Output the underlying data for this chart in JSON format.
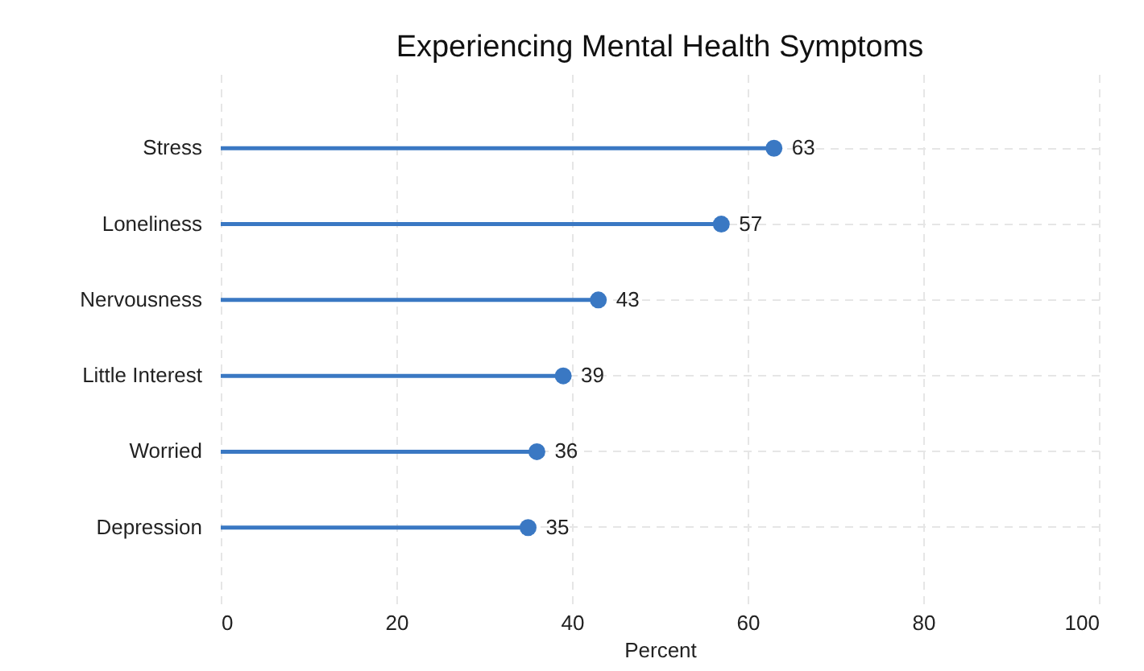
{
  "chart_data": {
    "type": "lollipop",
    "title": "Experiencing Mental Health Symptoms",
    "xlabel": "Percent",
    "orientation": "horizontal",
    "categories": [
      "Stress",
      "Loneliness",
      "Nervousness",
      "Little Interest",
      "Worried",
      "Depression"
    ],
    "values": [
      63,
      57,
      43,
      39,
      36,
      35
    ],
    "color": "#3a78c3",
    "xlim": [
      0,
      100
    ],
    "xticks": [
      0,
      20,
      40,
      60,
      80,
      100
    ],
    "grid": true,
    "data_labels": true,
    "marker": "circle"
  }
}
